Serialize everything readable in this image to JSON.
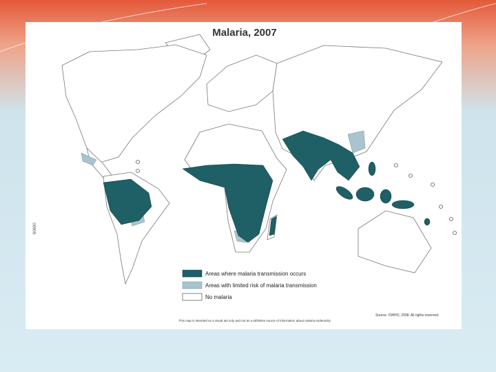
{
  "map": {
    "title": "Malaria, 2007",
    "legend": [
      "Areas where malaria transmission occurs",
      "Areas with limited risk of malaria transmission",
      "No malaria"
    ],
    "source": "Source: ©WHO, 2008. All rights reserved.",
    "disclaimer": "This map is intended as a visual aid only and not as a definitive source of information about malaria endemicity.",
    "code": "60690"
  }
}
